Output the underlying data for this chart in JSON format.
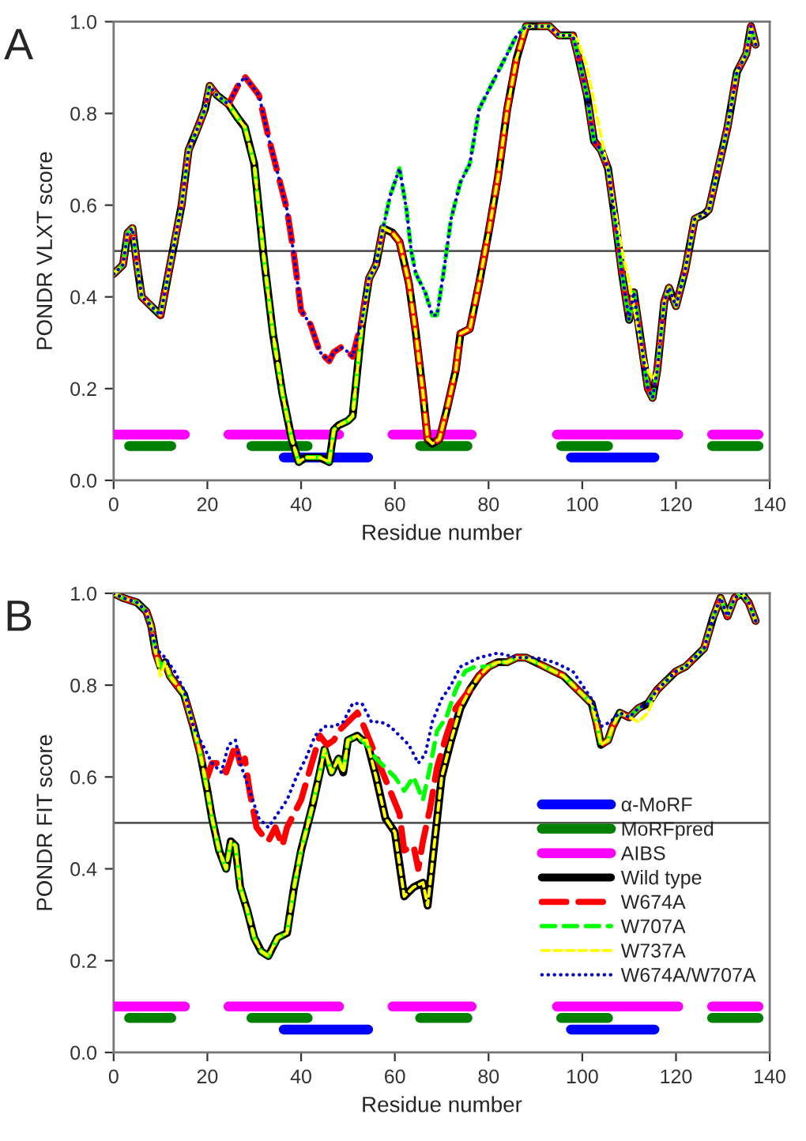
{
  "chart_data": [
    {
      "type": "line",
      "ylabel": "PONDR VLXT score",
      "xlabel": "Residue number",
      "annotations": [
        "A"
      ],
      "xlim": [
        0,
        140
      ],
      "xticks": [
        0,
        20,
        40,
        60,
        80,
        100,
        120,
        140
      ],
      "ylim": [
        0,
        1
      ],
      "yticks": [
        {
          "value": 0,
          "label": "0.0"
        },
        {
          "value": 0.2,
          "label": "0.2"
        },
        {
          "value": 0.4,
          "label": "0.4"
        },
        {
          "value": 0.6,
          "label": "0.6"
        },
        {
          "value": 0.8,
          "label": "0.8"
        },
        {
          "value": 1,
          "label": "1.0"
        }
      ],
      "grid": false,
      "marker": "none",
      "legend": false,
      "ref_lines": [
        {
          "axis": "y",
          "value": 0.5,
          "color": "#555555"
        }
      ],
      "series": [
        {
          "color": "#0000ff",
          "line_style": "solid",
          "x": [
            36.3,
            54.3,
            null,
            97.6,
            115.4
          ],
          "values": [
            0.05,
            0.05,
            null,
            0.05,
            0.05
          ]
        },
        {
          "color": "#008000",
          "line_style": "solid",
          "x": [
            3.3,
            12.3,
            null,
            29.4,
            41.4,
            null,
            65.4,
            75.5,
            null,
            95.5,
            105.5,
            null,
            127.7,
            137.6
          ],
          "values": [
            0.075,
            0.075,
            null,
            0.075,
            0.075,
            null,
            0.075,
            0.075,
            null,
            0.075,
            0.075,
            null,
            0.075,
            0.075
          ]
        },
        {
          "color": "#ff00ff",
          "line_style": "solid",
          "x": [
            0,
            15.2,
            null,
            24.5,
            48.1,
            null,
            59.5,
            76.4,
            null,
            94.6,
            120.5,
            null,
            127.7,
            137.6
          ],
          "values": [
            0.1,
            0.1,
            null,
            0.1,
            0.1,
            null,
            0.1,
            0.1,
            null,
            0.1,
            0.1,
            null,
            0.1,
            0.1
          ]
        },
        {
          "color": "#000000",
          "line_style": "solid",
          "x": [
            0,
            2,
            3,
            4,
            5,
            6,
            8,
            10,
            11.5,
            13,
            14.5,
            16,
            18,
            19.5,
            20.5,
            22,
            24.5,
            26.5,
            28,
            30,
            32,
            34,
            36,
            38,
            39.5,
            41,
            44,
            46,
            47,
            48,
            50,
            51,
            52,
            53,
            54.5,
            56,
            57.5,
            59.5,
            61,
            63,
            64.5,
            66,
            67,
            68,
            69.5,
            71,
            73,
            74,
            76,
            78,
            80,
            82,
            84,
            86,
            88,
            90,
            93,
            95,
            98,
            99,
            101,
            102.5,
            104,
            105.5,
            107,
            108.5,
            110,
            111,
            112,
            113,
            114,
            115,
            116,
            117.5,
            118.5,
            120,
            122,
            124,
            126,
            127,
            129,
            131,
            133,
            135,
            136,
            137
          ],
          "values": [
            0.45,
            0.47,
            0.54,
            0.55,
            0.47,
            0.4,
            0.38,
            0.36,
            0.44,
            0.52,
            0.6,
            0.72,
            0.77,
            0.81,
            0.86,
            0.84,
            0.82,
            0.79,
            0.77,
            0.69,
            0.49,
            0.32,
            0.19,
            0.09,
            0.04,
            0.05,
            0.05,
            0.04,
            0.11,
            0.12,
            0.13,
            0.14,
            0.24,
            0.34,
            0.44,
            0.47,
            0.55,
            0.54,
            0.52,
            0.43,
            0.32,
            0.19,
            0.09,
            0.08,
            0.09,
            0.15,
            0.24,
            0.32,
            0.33,
            0.43,
            0.54,
            0.66,
            0.81,
            0.92,
            0.99,
            0.99,
            0.99,
            0.97,
            0.97,
            0.93,
            0.84,
            0.74,
            0.72,
            0.68,
            0.57,
            0.45,
            0.35,
            0.41,
            0.34,
            0.27,
            0.2,
            0.18,
            0.24,
            0.39,
            0.42,
            0.38,
            0.46,
            0.57,
            0.58,
            0.59,
            0.68,
            0.77,
            0.89,
            0.93,
            0.99,
            0.95
          ]
        },
        {
          "color": "#ff0000",
          "line_style": "dashed",
          "x": [
            0,
            2,
            3,
            4,
            5,
            6,
            8,
            10,
            11.5,
            13,
            14.5,
            16,
            18,
            19.5,
            20.5,
            22,
            24.5,
            26.5,
            28,
            29.5,
            31,
            33,
            35,
            37,
            38.5,
            40,
            42,
            44,
            46,
            47,
            48.5,
            50,
            51,
            53,
            54.5,
            56,
            57.5,
            59.5,
            61,
            63,
            64.5,
            66,
            67,
            68,
            69.5,
            71,
            73,
            74,
            76,
            78,
            80,
            82,
            84,
            86,
            88,
            90,
            93,
            95,
            98,
            99,
            101,
            102.5,
            104,
            105.5,
            107,
            108.5,
            110,
            111,
            112,
            113,
            114,
            115,
            116,
            117.5,
            118.5,
            120,
            122,
            124,
            126,
            127,
            129,
            131,
            133,
            135,
            136,
            137
          ],
          "values": [
            0.45,
            0.47,
            0.54,
            0.55,
            0.47,
            0.4,
            0.38,
            0.36,
            0.44,
            0.52,
            0.6,
            0.72,
            0.77,
            0.81,
            0.86,
            0.84,
            0.82,
            0.86,
            0.88,
            0.86,
            0.84,
            0.75,
            0.67,
            0.59,
            0.49,
            0.37,
            0.34,
            0.28,
            0.26,
            0.28,
            0.29,
            0.28,
            0.27,
            0.35,
            0.44,
            0.47,
            0.55,
            0.54,
            0.52,
            0.43,
            0.32,
            0.19,
            0.09,
            0.08,
            0.09,
            0.15,
            0.24,
            0.32,
            0.33,
            0.43,
            0.54,
            0.66,
            0.81,
            0.92,
            0.99,
            0.99,
            0.99,
            0.97,
            0.97,
            0.93,
            0.84,
            0.74,
            0.72,
            0.68,
            0.57,
            0.45,
            0.35,
            0.41,
            0.34,
            0.27,
            0.2,
            0.18,
            0.24,
            0.39,
            0.42,
            0.38,
            0.46,
            0.57,
            0.58,
            0.59,
            0.68,
            0.77,
            0.89,
            0.93,
            0.99,
            0.95
          ]
        },
        {
          "color": "#00ff00",
          "line_style": "dashed",
          "x": [
            0,
            2,
            3,
            4,
            5,
            6,
            8,
            10,
            11.5,
            13,
            14.5,
            16,
            18,
            19.5,
            20.5,
            22,
            24.5,
            26.5,
            28,
            30,
            32,
            34,
            36,
            38,
            39.5,
            41,
            44,
            46,
            47,
            48,
            50,
            51,
            52,
            53,
            54.5,
            56,
            57.5,
            59,
            61,
            62.5,
            63.5,
            64.5,
            66.5,
            68,
            69,
            70.5,
            72,
            74,
            76,
            78,
            80,
            82,
            84,
            86,
            88,
            90,
            93,
            95,
            98,
            99,
            101,
            102.5,
            104,
            105.5,
            107,
            108.5,
            110,
            111,
            112,
            113,
            114,
            115,
            116,
            117.5,
            118.5,
            120,
            122,
            124,
            126,
            127,
            129,
            131,
            133,
            135,
            136,
            137
          ],
          "values": [
            0.45,
            0.47,
            0.54,
            0.55,
            0.47,
            0.4,
            0.38,
            0.36,
            0.44,
            0.52,
            0.6,
            0.72,
            0.77,
            0.81,
            0.86,
            0.84,
            0.82,
            0.79,
            0.77,
            0.69,
            0.49,
            0.32,
            0.19,
            0.09,
            0.04,
            0.05,
            0.05,
            0.04,
            0.11,
            0.12,
            0.13,
            0.14,
            0.24,
            0.34,
            0.44,
            0.47,
            0.55,
            0.62,
            0.68,
            0.59,
            0.5,
            0.45,
            0.41,
            0.36,
            0.36,
            0.46,
            0.57,
            0.65,
            0.69,
            0.81,
            0.85,
            0.89,
            0.93,
            0.97,
            0.99,
            0.99,
            0.99,
            0.97,
            0.97,
            0.93,
            0.84,
            0.74,
            0.72,
            0.68,
            0.57,
            0.45,
            0.35,
            0.41,
            0.34,
            0.27,
            0.2,
            0.18,
            0.24,
            0.39,
            0.42,
            0.38,
            0.46,
            0.57,
            0.58,
            0.59,
            0.68,
            0.77,
            0.89,
            0.93,
            0.99,
            0.95
          ]
        },
        {
          "color": "#ffff00",
          "line_style": "dashed",
          "x": [
            0,
            2,
            3,
            4,
            5,
            6,
            8,
            10,
            11.5,
            13,
            14.5,
            16,
            18,
            19.5,
            20.5,
            22,
            24.5,
            26.5,
            28,
            30,
            32,
            34,
            36,
            38,
            39.5,
            41,
            44,
            46,
            47,
            48,
            50,
            51,
            52,
            53,
            54.5,
            56,
            57.5,
            59.5,
            61,
            63,
            64.5,
            66,
            67,
            68,
            69.5,
            71,
            73,
            74,
            76,
            78,
            80,
            82,
            84,
            86,
            88,
            90,
            93,
            95,
            98,
            99,
            101,
            103,
            105,
            107,
            108.5,
            110,
            111,
            113,
            114,
            115,
            116,
            117.5,
            118.5,
            120,
            122,
            124,
            126,
            127,
            129,
            131,
            133,
            135,
            136,
            137
          ],
          "values": [
            0.45,
            0.47,
            0.54,
            0.55,
            0.47,
            0.4,
            0.38,
            0.36,
            0.44,
            0.52,
            0.6,
            0.72,
            0.77,
            0.81,
            0.86,
            0.84,
            0.82,
            0.79,
            0.77,
            0.69,
            0.49,
            0.32,
            0.19,
            0.09,
            0.04,
            0.05,
            0.05,
            0.04,
            0.11,
            0.12,
            0.13,
            0.14,
            0.24,
            0.34,
            0.44,
            0.47,
            0.55,
            0.54,
            0.52,
            0.43,
            0.32,
            0.19,
            0.09,
            0.08,
            0.09,
            0.15,
            0.24,
            0.32,
            0.33,
            0.43,
            0.54,
            0.66,
            0.81,
            0.92,
            0.99,
            0.99,
            0.99,
            0.97,
            0.97,
            0.96,
            0.9,
            0.8,
            0.7,
            0.59,
            0.5,
            0.43,
            0.38,
            0.27,
            0.24,
            0.22,
            0.24,
            0.39,
            0.42,
            0.38,
            0.46,
            0.57,
            0.58,
            0.59,
            0.68,
            0.77,
            0.89,
            0.93,
            0.99,
            0.95
          ]
        },
        {
          "color": "#0000cc",
          "line_style": "dotted",
          "x": [
            0,
            2,
            3,
            4,
            5,
            6,
            8,
            10,
            11.5,
            13,
            14.5,
            16,
            18,
            19.5,
            20.5,
            22,
            24.5,
            26.5,
            28,
            29.5,
            31,
            33,
            35,
            37,
            38.5,
            40,
            42,
            44,
            46,
            47,
            48.5,
            50,
            51,
            53,
            54.5,
            56,
            57.5,
            59,
            61,
            62.5,
            63.5,
            64.5,
            66.5,
            68,
            69,
            70.5,
            72,
            74,
            76,
            78,
            80,
            82,
            84,
            86,
            88,
            90,
            93,
            95,
            98,
            99,
            101,
            102.5,
            104,
            105.5,
            107,
            108.5,
            110,
            111,
            112,
            113,
            114,
            115,
            116,
            117.5,
            118.5,
            120,
            122,
            124,
            126,
            127,
            129,
            131,
            133,
            135,
            136,
            137
          ],
          "values": [
            0.45,
            0.47,
            0.54,
            0.55,
            0.47,
            0.4,
            0.38,
            0.36,
            0.44,
            0.52,
            0.6,
            0.72,
            0.77,
            0.81,
            0.86,
            0.84,
            0.82,
            0.86,
            0.88,
            0.86,
            0.84,
            0.75,
            0.67,
            0.59,
            0.49,
            0.37,
            0.34,
            0.28,
            0.26,
            0.28,
            0.29,
            0.28,
            0.27,
            0.35,
            0.44,
            0.47,
            0.55,
            0.62,
            0.68,
            0.59,
            0.5,
            0.45,
            0.41,
            0.36,
            0.36,
            0.46,
            0.57,
            0.65,
            0.69,
            0.81,
            0.85,
            0.89,
            0.93,
            0.97,
            0.99,
            0.99,
            0.99,
            0.97,
            0.97,
            0.93,
            0.84,
            0.74,
            0.72,
            0.68,
            0.57,
            0.45,
            0.35,
            0.41,
            0.34,
            0.27,
            0.2,
            0.18,
            0.24,
            0.39,
            0.42,
            0.38,
            0.46,
            0.57,
            0.58,
            0.59,
            0.68,
            0.77,
            0.89,
            0.93,
            0.99,
            0.95
          ]
        }
      ]
    },
    {
      "type": "line",
      "ylabel": "PONDR FIT score",
      "xlabel": "Residue number",
      "annotations": [
        "B"
      ],
      "xlim": [
        0,
        140
      ],
      "xticks": [
        0,
        20,
        40,
        60,
        80,
        100,
        120,
        140
      ],
      "ylim": [
        0,
        1
      ],
      "yticks": [
        {
          "value": 0,
          "label": "0.0"
        },
        {
          "value": 0.2,
          "label": "0.2"
        },
        {
          "value": 0.4,
          "label": "0.4"
        },
        {
          "value": 0.6,
          "label": "0.6"
        },
        {
          "value": 0.8,
          "label": "0.8"
        },
        {
          "value": 1,
          "label": "1.0"
        }
      ],
      "grid": false,
      "marker": "none",
      "legend": "bottom right",
      "ref_lines": [
        {
          "axis": "y",
          "value": 0.5,
          "color": "#555555"
        }
      ],
      "series": [
        {
          "name": "α-MoRF",
          "color": "#0000ff",
          "line_style": "solid",
          "x": [
            36.3,
            54.3,
            null,
            97.6,
            115.4
          ],
          "values": [
            0.05,
            0.05,
            null,
            0.05,
            0.05
          ]
        },
        {
          "name": "MoRFpred",
          "color": "#008000",
          "line_style": "solid",
          "x": [
            3.3,
            12.3,
            null,
            29.4,
            41.4,
            null,
            65.4,
            75.5,
            null,
            95.5,
            105.5,
            null,
            127.7,
            137.6
          ],
          "values": [
            0.075,
            0.075,
            null,
            0.075,
            0.075,
            null,
            0.075,
            0.075,
            null,
            0.075,
            0.075,
            null,
            0.075,
            0.075
          ]
        },
        {
          "name": "AIBS",
          "color": "#ff00ff",
          "line_style": "solid",
          "x": [
            0,
            15.2,
            null,
            24.5,
            48.1,
            null,
            59.5,
            76.4,
            null,
            94.6,
            120.5,
            null,
            127.7,
            137.6
          ],
          "values": [
            0.1,
            0.1,
            null,
            0.1,
            0.1,
            null,
            0.1,
            0.1,
            null,
            0.1,
            0.1,
            null,
            0.1,
            0.1
          ]
        },
        {
          "name": "Wild type",
          "color": "#000000",
          "line_style": "solid",
          "x": [
            0,
            2,
            5,
            7,
            8,
            9,
            10,
            11,
            12,
            13.5,
            15,
            17,
            18.5,
            20,
            21,
            22.5,
            24,
            25,
            26,
            27,
            28.5,
            30,
            31.5,
            33,
            35,
            37,
            38.5,
            40,
            41,
            42.5,
            44,
            45,
            46.5,
            48,
            49,
            50,
            52,
            53,
            54,
            56,
            58,
            60,
            62,
            64,
            66,
            67,
            68.5,
            70,
            72,
            74,
            76,
            78,
            80,
            82,
            84,
            86,
            88,
            90,
            92,
            94,
            96,
            98,
            100,
            102,
            103,
            104,
            105.5,
            106.5,
            108,
            110,
            112,
            114,
            116,
            118,
            120,
            122,
            124,
            126,
            128,
            129.5,
            131,
            132.5,
            134,
            135.5,
            137
          ],
          "values": [
            1.0,
            0.99,
            0.98,
            0.96,
            0.93,
            0.87,
            0.84,
            0.85,
            0.82,
            0.8,
            0.78,
            0.71,
            0.65,
            0.57,
            0.51,
            0.44,
            0.4,
            0.46,
            0.45,
            0.36,
            0.31,
            0.25,
            0.22,
            0.21,
            0.25,
            0.26,
            0.36,
            0.44,
            0.48,
            0.54,
            0.61,
            0.66,
            0.61,
            0.64,
            0.61,
            0.68,
            0.69,
            0.68,
            0.68,
            0.6,
            0.51,
            0.48,
            0.34,
            0.36,
            0.37,
            0.32,
            0.46,
            0.6,
            0.68,
            0.75,
            0.79,
            0.82,
            0.84,
            0.85,
            0.85,
            0.86,
            0.86,
            0.85,
            0.84,
            0.83,
            0.82,
            0.8,
            0.78,
            0.76,
            0.72,
            0.67,
            0.68,
            0.71,
            0.74,
            0.73,
            0.75,
            0.76,
            0.79,
            0.81,
            0.83,
            0.84,
            0.86,
            0.88,
            0.95,
            0.99,
            0.95,
            0.99,
            1.0,
            0.98,
            0.94
          ]
        },
        {
          "name": "W674A",
          "color": "#ff0000",
          "line_style": "dashed",
          "x": [
            0,
            2,
            5,
            7,
            8,
            9,
            10,
            11,
            12,
            13.5,
            15,
            17,
            18.5,
            20,
            21,
            22.5,
            24,
            25,
            26,
            27,
            28,
            29,
            30.5,
            32,
            33,
            34.5,
            36,
            37,
            38.5,
            40,
            42,
            44,
            45.5,
            47,
            48,
            50,
            52,
            53,
            55,
            57,
            59,
            61,
            62,
            64,
            65,
            66,
            67.5,
            69,
            71,
            73,
            76,
            78,
            80,
            82,
            84,
            86,
            88,
            90,
            92,
            94,
            96,
            98,
            100,
            102,
            103,
            104,
            105.5,
            106.5,
            108,
            110,
            112,
            114,
            116,
            118,
            120,
            122,
            124,
            126,
            128,
            129.5,
            131,
            132.5,
            134,
            135.5,
            137
          ],
          "values": [
            1.0,
            0.99,
            0.98,
            0.96,
            0.93,
            0.87,
            0.84,
            0.85,
            0.82,
            0.8,
            0.78,
            0.71,
            0.65,
            0.6,
            0.63,
            0.63,
            0.61,
            0.64,
            0.67,
            0.63,
            0.64,
            0.57,
            0.49,
            0.47,
            0.46,
            0.49,
            0.45,
            0.49,
            0.52,
            0.55,
            0.62,
            0.69,
            0.67,
            0.68,
            0.7,
            0.72,
            0.74,
            0.72,
            0.67,
            0.62,
            0.57,
            0.52,
            0.44,
            0.45,
            0.4,
            0.46,
            0.53,
            0.62,
            0.69,
            0.75,
            0.79,
            0.82,
            0.84,
            0.85,
            0.85,
            0.86,
            0.86,
            0.85,
            0.84,
            0.83,
            0.82,
            0.8,
            0.78,
            0.76,
            0.72,
            0.67,
            0.68,
            0.71,
            0.74,
            0.73,
            0.75,
            0.76,
            0.79,
            0.81,
            0.83,
            0.84,
            0.86,
            0.88,
            0.95,
            0.99,
            0.95,
            0.99,
            1.0,
            0.98,
            0.94
          ]
        },
        {
          "name": "W707A",
          "color": "#00ff00",
          "line_style": "dashed",
          "x": [
            0,
            2,
            5,
            7,
            8,
            9,
            10,
            11,
            12,
            13.5,
            15,
            17,
            18.5,
            20,
            21,
            22.5,
            24,
            25,
            26,
            27,
            28.5,
            30,
            31.5,
            33,
            35,
            37,
            38.5,
            40,
            41,
            42.5,
            44,
            45,
            46.5,
            48,
            49,
            50,
            52,
            54,
            56,
            58,
            60,
            62,
            64,
            66,
            67.5,
            69,
            71,
            73,
            75,
            77,
            80,
            82,
            84,
            86,
            88,
            90,
            92,
            94,
            96,
            98,
            100,
            102,
            103,
            104,
            105.5,
            106.5,
            108,
            110,
            112,
            114,
            116,
            118,
            120,
            122,
            124,
            126,
            128,
            129.5,
            131,
            132.5,
            134,
            135.5,
            137
          ],
          "values": [
            1.0,
            0.99,
            0.98,
            0.96,
            0.93,
            0.87,
            0.84,
            0.85,
            0.82,
            0.8,
            0.78,
            0.71,
            0.65,
            0.57,
            0.51,
            0.44,
            0.4,
            0.46,
            0.45,
            0.36,
            0.31,
            0.25,
            0.22,
            0.21,
            0.25,
            0.26,
            0.36,
            0.44,
            0.48,
            0.54,
            0.61,
            0.66,
            0.61,
            0.64,
            0.61,
            0.68,
            0.69,
            0.67,
            0.64,
            0.62,
            0.6,
            0.57,
            0.6,
            0.55,
            0.62,
            0.7,
            0.73,
            0.79,
            0.83,
            0.84,
            0.84,
            0.85,
            0.85,
            0.86,
            0.86,
            0.85,
            0.84,
            0.83,
            0.82,
            0.8,
            0.78,
            0.76,
            0.72,
            0.67,
            0.68,
            0.71,
            0.74,
            0.73,
            0.75,
            0.76,
            0.79,
            0.81,
            0.83,
            0.84,
            0.86,
            0.88,
            0.95,
            0.99,
            0.95,
            0.99,
            1.0,
            0.98,
            0.94
          ]
        },
        {
          "name": "W737A",
          "color": "#ffff00",
          "line_style": "dashed",
          "x": [
            0,
            2,
            5,
            7,
            8,
            9,
            10,
            11,
            12,
            13.5,
            15,
            17,
            18.5,
            20,
            21,
            22.5,
            24,
            25,
            26,
            27,
            28.5,
            30,
            31.5,
            33,
            35,
            37,
            38.5,
            40,
            41,
            42.5,
            44,
            45,
            46.5,
            48,
            49,
            50,
            52,
            53,
            54,
            56,
            58,
            60,
            62,
            64,
            66,
            67,
            68.5,
            70,
            72,
            74,
            76,
            78,
            80,
            82,
            84,
            86,
            88,
            90,
            92,
            94,
            96,
            98,
            100,
            102,
            103,
            104,
            105.5,
            106.5,
            108,
            110,
            112,
            114,
            116,
            118,
            120,
            122,
            124,
            126,
            128,
            129.5,
            131,
            132.5,
            134,
            135.5,
            137
          ],
          "values": [
            1.0,
            0.99,
            0.98,
            0.96,
            0.93,
            0.87,
            0.82,
            0.85,
            0.82,
            0.8,
            0.78,
            0.71,
            0.65,
            0.57,
            0.51,
            0.44,
            0.4,
            0.46,
            0.45,
            0.36,
            0.31,
            0.25,
            0.22,
            0.21,
            0.25,
            0.26,
            0.36,
            0.44,
            0.48,
            0.54,
            0.61,
            0.66,
            0.61,
            0.64,
            0.61,
            0.68,
            0.69,
            0.68,
            0.68,
            0.6,
            0.51,
            0.48,
            0.34,
            0.36,
            0.37,
            0.32,
            0.46,
            0.6,
            0.68,
            0.75,
            0.79,
            0.82,
            0.84,
            0.85,
            0.85,
            0.86,
            0.86,
            0.85,
            0.84,
            0.83,
            0.82,
            0.8,
            0.78,
            0.76,
            0.72,
            0.67,
            0.68,
            0.71,
            0.74,
            0.73,
            0.72,
            0.74,
            0.79,
            0.81,
            0.83,
            0.84,
            0.86,
            0.88,
            0.95,
            0.99,
            0.95,
            0.99,
            1.0,
            0.98,
            0.94
          ]
        },
        {
          "name": "W674A/W707A",
          "color": "#0000cc",
          "line_style": "dotted",
          "x": [
            0,
            2,
            5,
            7,
            9,
            11,
            13,
            15,
            17,
            19,
            21,
            23,
            24.5,
            26,
            27,
            29,
            31,
            33,
            35,
            37,
            39,
            41,
            43,
            45,
            47,
            49,
            51,
            53,
            55,
            57,
            59,
            61,
            63,
            65,
            66.5,
            68,
            70,
            72,
            74,
            76,
            78,
            82,
            86,
            90,
            94,
            98,
            102,
            104,
            106,
            108,
            110,
            112,
            114,
            116,
            118,
            120,
            122,
            124,
            126,
            128,
            129.5,
            131,
            132.5,
            134,
            135.5,
            137
          ],
          "values": [
            1.0,
            0.99,
            0.98,
            0.96,
            0.88,
            0.86,
            0.83,
            0.79,
            0.71,
            0.67,
            0.63,
            0.61,
            0.67,
            0.68,
            0.63,
            0.57,
            0.51,
            0.49,
            0.52,
            0.55,
            0.6,
            0.64,
            0.69,
            0.71,
            0.71,
            0.72,
            0.76,
            0.76,
            0.72,
            0.72,
            0.71,
            0.69,
            0.67,
            0.63,
            0.65,
            0.72,
            0.77,
            0.8,
            0.84,
            0.85,
            0.86,
            0.87,
            0.86,
            0.86,
            0.85,
            0.83,
            0.77,
            0.71,
            0.72,
            0.74,
            0.73,
            0.75,
            0.76,
            0.79,
            0.81,
            0.83,
            0.84,
            0.86,
            0.88,
            0.95,
            0.99,
            0.95,
            0.99,
            1.0,
            0.98,
            0.94
          ]
        }
      ]
    }
  ]
}
